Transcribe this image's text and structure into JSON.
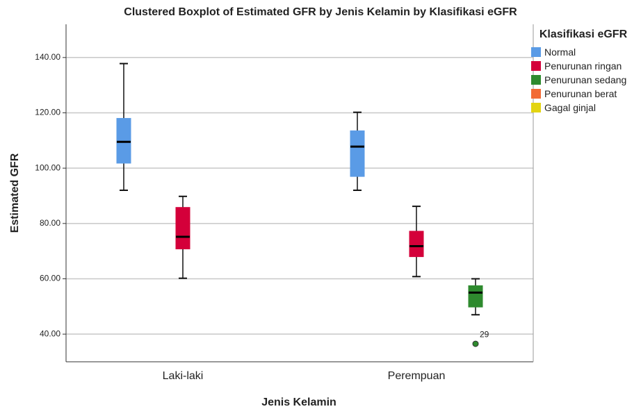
{
  "chart_data": {
    "type": "boxplot",
    "title": "Clustered Boxplot of Estimated GFR by Jenis Kelamin by Klasifikasi eGFR",
    "x_label": "Jenis Kelamin",
    "y_label": "Estimated GFR",
    "legend_title": "Klasifikasi eGFR",
    "categories": [
      "Laki-laki",
      "Perempuan"
    ],
    "ylim": [
      30,
      152
    ],
    "yticks": [
      {
        "value": 40,
        "label": "40.00"
      },
      {
        "value": 60,
        "label": "60.00"
      },
      {
        "value": 80,
        "label": "80.00"
      },
      {
        "value": 100,
        "label": "100.00"
      },
      {
        "value": 120,
        "label": "120.00"
      },
      {
        "value": 140,
        "label": "140.00"
      }
    ],
    "grid": true,
    "legend": "right",
    "series": [
      {
        "name": "Normal",
        "color": "#5a9be6",
        "boxes": [
          {
            "min": 92,
            "q1": 101.8,
            "median": 109.5,
            "q3": 118,
            "max": 137.8
          },
          {
            "min": 92,
            "q1": 97,
            "median": 107.8,
            "q3": 113.5,
            "max": 120.2
          }
        ]
      },
      {
        "name": "Penurunan ringan",
        "color": "#d4003a",
        "boxes": [
          {
            "min": 60.2,
            "q1": 70.8,
            "median": 75.2,
            "q3": 85.8,
            "max": 89.8
          },
          {
            "min": 60.8,
            "q1": 68,
            "median": 71.8,
            "q3": 77.2,
            "max": 86.2
          }
        ]
      },
      {
        "name": "Penurunan sedang",
        "color": "#2e8a2e",
        "boxes": [
          null,
          {
            "min": 47,
            "q1": 49.8,
            "median": 55,
            "q3": 57.5,
            "max": 60
          }
        ],
        "outliers": [
          null,
          [
            {
              "value": 36.5,
              "case": "29"
            }
          ]
        ]
      },
      {
        "name": "Penurunan berat",
        "color": "#f26a35",
        "boxes": [
          null,
          null
        ]
      },
      {
        "name": "Gagal ginjal",
        "color": "#e3d412",
        "boxes": [
          null,
          null
        ]
      }
    ]
  }
}
